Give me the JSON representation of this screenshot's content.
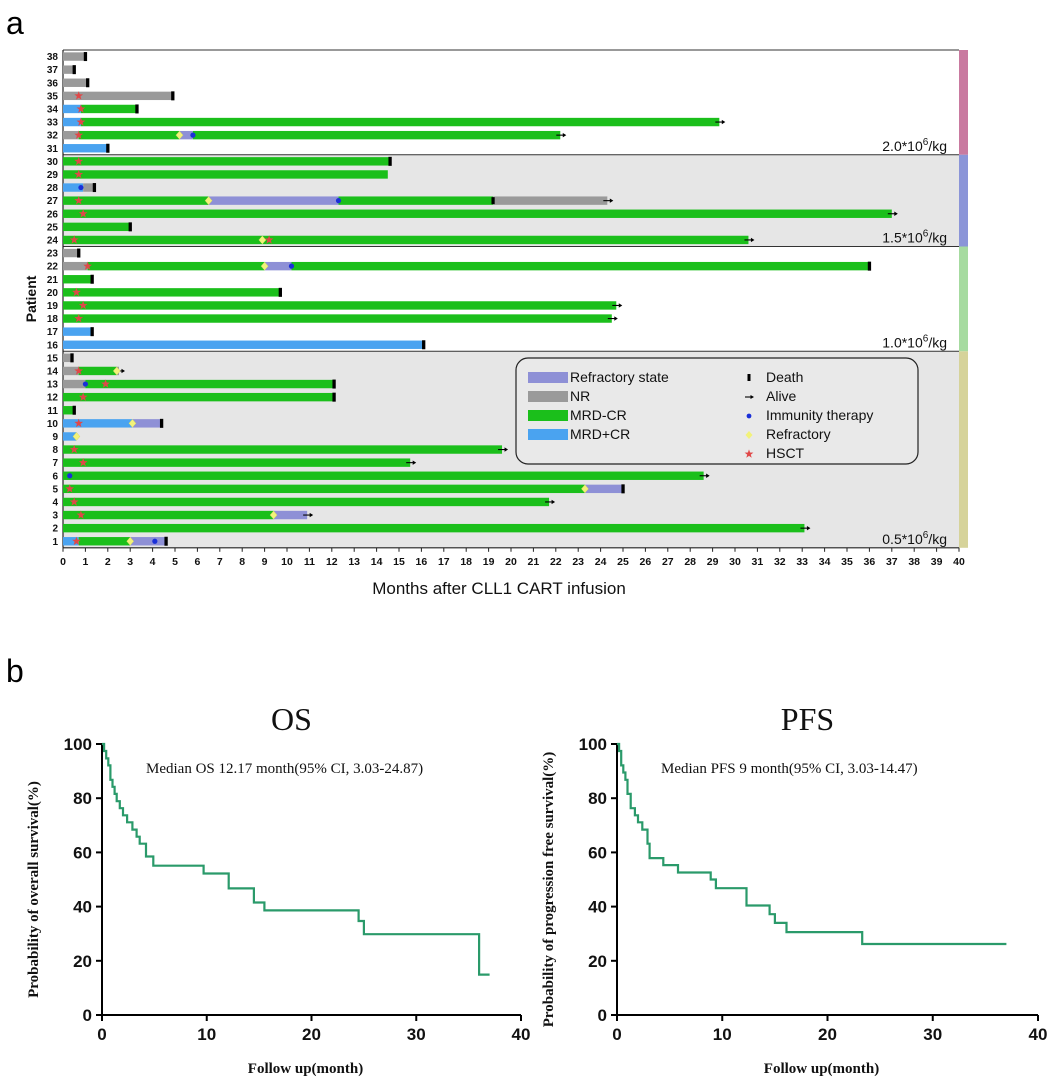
{
  "panel_labels": {
    "a": "a",
    "b": "b"
  },
  "colors": {
    "refractory_state": "#8e90d6",
    "nr": "#9a9a9a",
    "mrd_neg_cr": "#1bbf1b",
    "mrd_pos_cr": "#4aa3f0",
    "immunity": "#1a2fd8",
    "refractory": "#f2f27a",
    "hsct": "#e04848",
    "km_line": "#2a9a6a",
    "band_2_0": "#c97aa0",
    "band_1_5": "#8b95d8",
    "band_1_0": "#a6dba0",
    "band_0_5": "#d6d39a",
    "shade": "#e6e6e6"
  },
  "chart_data": [
    {
      "type": "swimmer",
      "ylabel": "Patient",
      "xlabel": "Months after CLL1 CART infusion",
      "xlim": [
        0,
        40
      ],
      "xticks": [
        0,
        1,
        2,
        3,
        4,
        5,
        6,
        7,
        8,
        9,
        10,
        11,
        12,
        13,
        14,
        15,
        16,
        17,
        18,
        19,
        20,
        21,
        22,
        23,
        24,
        25,
        26,
        27,
        28,
        29,
        30,
        31,
        32,
        33,
        34,
        35,
        36,
        37,
        38,
        39,
        40
      ],
      "legend": [
        {
          "key": "refractory_state",
          "label": "Refractory state",
          "kind": "bar"
        },
        {
          "key": "nr",
          "label": "NR",
          "kind": "bar"
        },
        {
          "key": "mrd_neg_cr",
          "label": "MRD-CR",
          "kind": "bar"
        },
        {
          "key": "mrd_pos_cr",
          "label": "MRD+CR",
          "kind": "bar"
        },
        {
          "key": "death",
          "label": "Death",
          "kind": "marker"
        },
        {
          "key": "alive",
          "label": "Alive",
          "kind": "marker"
        },
        {
          "key": "immunity",
          "label": "Immunity therapy",
          "kind": "marker"
        },
        {
          "key": "refractory",
          "label": "Refractory",
          "kind": "marker"
        },
        {
          "key": "hsct",
          "label": "HSCT",
          "kind": "marker"
        }
      ],
      "dose_groups": [
        {
          "label": "2.0*10",
          "sup": "6",
          "unit": "/kg",
          "from": 31,
          "to": 38,
          "color_key": "band_2_0",
          "shaded": false
        },
        {
          "label": "1.5*10",
          "sup": "6",
          "unit": "/kg",
          "from": 24,
          "to": 30,
          "color_key": "band_1_5",
          "shaded": true
        },
        {
          "label": "1.0*10",
          "sup": "6",
          "unit": "/kg",
          "from": 16,
          "to": 23,
          "color_key": "band_1_0",
          "shaded": false
        },
        {
          "label": "0.5*10",
          "sup": "6",
          "unit": "/kg",
          "from": 1,
          "to": 15,
          "color_key": "band_0_5",
          "shaded": true
        }
      ],
      "patients": [
        {
          "id": 38,
          "segments": [
            [
              "nr",
              0,
              1.0
            ]
          ],
          "end": "death",
          "events": []
        },
        {
          "id": 37,
          "segments": [
            [
              "nr",
              0,
              0.5
            ]
          ],
          "end": "death",
          "events": []
        },
        {
          "id": 36,
          "segments": [
            [
              "nr",
              0,
              1.1
            ]
          ],
          "end": "death",
          "events": []
        },
        {
          "id": 35,
          "segments": [
            [
              "nr",
              0,
              4.9
            ]
          ],
          "end": "death",
          "events": [
            [
              "hsct",
              0.7
            ]
          ]
        },
        {
          "id": 34,
          "segments": [
            [
              "mrd_pos_cr",
              0,
              0.8
            ],
            [
              "mrd_neg_cr",
              0.8,
              3.3
            ]
          ],
          "end": "death",
          "events": [
            [
              "hsct",
              0.8
            ]
          ]
        },
        {
          "id": 33,
          "segments": [
            [
              "mrd_pos_cr",
              0,
              0.8
            ],
            [
              "mrd_neg_cr",
              0.8,
              29.3
            ]
          ],
          "end": "alive",
          "events": [
            [
              "hsct",
              0.8
            ]
          ]
        },
        {
          "id": 32,
          "segments": [
            [
              "nr",
              0,
              0.7
            ],
            [
              "mrd_neg_cr",
              0.7,
              5.2
            ],
            [
              "refractory_state",
              5.2,
              5.8
            ],
            [
              "mrd_neg_cr",
              5.8,
              22.2
            ]
          ],
          "end": "alive",
          "events": [
            [
              "hsct",
              0.7
            ],
            [
              "refractory",
              5.2
            ],
            [
              "immunity",
              5.8
            ]
          ]
        },
        {
          "id": 31,
          "segments": [
            [
              "mrd_pos_cr",
              0,
              2.0
            ]
          ],
          "end": "death",
          "events": []
        },
        {
          "id": 30,
          "segments": [
            [
              "mrd_neg_cr",
              0,
              14.6
            ]
          ],
          "end": "death",
          "events": [
            [
              "hsct",
              0.7
            ]
          ]
        },
        {
          "id": 29,
          "segments": [
            [
              "mrd_neg_cr",
              0,
              14.5
            ]
          ],
          "end": "none",
          "events": [
            [
              "hsct",
              0.7
            ]
          ]
        },
        {
          "id": 28,
          "segments": [
            [
              "mrd_pos_cr",
              0,
              0.9
            ],
            [
              "nr",
              0.9,
              1.4
            ]
          ],
          "end": "death",
          "events": [
            [
              "immunity",
              0.8
            ]
          ]
        },
        {
          "id": 27,
          "segments": [
            [
              "mrd_neg_cr",
              0,
              6.5
            ],
            [
              "refractory_state",
              6.5,
              12.3
            ],
            [
              "mrd_neg_cr",
              12.3,
              19.2
            ],
            [
              "nr",
              19.2,
              24.3
            ]
          ],
          "end": "alive",
          "events": [
            [
              "hsct",
              0.7
            ],
            [
              "refractory",
              6.5
            ],
            [
              "immunity",
              12.3
            ],
            [
              "death_mark",
              19.2
            ]
          ]
        },
        {
          "id": 26,
          "segments": [
            [
              "mrd_neg_cr",
              0,
              37.0
            ]
          ],
          "end": "alive",
          "events": [
            [
              "hsct",
              0.9
            ]
          ]
        },
        {
          "id": 25,
          "segments": [
            [
              "mrd_neg_cr",
              0,
              3.0
            ]
          ],
          "end": "death",
          "events": []
        },
        {
          "id": 24,
          "segments": [
            [
              "mrd_neg_cr",
              0,
              30.6
            ]
          ],
          "end": "alive",
          "events": [
            [
              "hsct",
              0.5
            ],
            [
              "refractory",
              8.9
            ],
            [
              "hsct",
              9.2
            ]
          ]
        },
        {
          "id": 23,
          "segments": [
            [
              "nr",
              0,
              0.7
            ]
          ],
          "end": "death",
          "events": []
        },
        {
          "id": 22,
          "segments": [
            [
              "nr",
              0,
              1.1
            ],
            [
              "mrd_neg_cr",
              1.1,
              9.0
            ],
            [
              "refractory_state",
              9.0,
              10.2
            ],
            [
              "mrd_neg_cr",
              10.2,
              36.0
            ]
          ],
          "end": "death",
          "events": [
            [
              "hsct",
              1.1
            ],
            [
              "refractory",
              9.0
            ],
            [
              "immunity",
              10.2
            ]
          ]
        },
        {
          "id": 21,
          "segments": [
            [
              "mrd_neg_cr",
              0,
              1.3
            ]
          ],
          "end": "death",
          "events": []
        },
        {
          "id": 20,
          "segments": [
            [
              "mrd_neg_cr",
              0,
              9.7
            ]
          ],
          "end": "death",
          "events": [
            [
              "hsct",
              0.6
            ]
          ]
        },
        {
          "id": 19,
          "segments": [
            [
              "mrd_neg_cr",
              0,
              24.7
            ]
          ],
          "end": "alive",
          "events": [
            [
              "hsct",
              0.9
            ]
          ]
        },
        {
          "id": 18,
          "segments": [
            [
              "mrd_neg_cr",
              0,
              24.5
            ]
          ],
          "end": "alive",
          "events": [
            [
              "hsct",
              0.7
            ]
          ]
        },
        {
          "id": 17,
          "segments": [
            [
              "mrd_pos_cr",
              0,
              1.3
            ]
          ],
          "end": "death",
          "events": []
        },
        {
          "id": 16,
          "segments": [
            [
              "mrd_pos_cr",
              0,
              16.1
            ]
          ],
          "end": "death",
          "events": []
        },
        {
          "id": 15,
          "segments": [
            [
              "nr",
              0,
              0.4
            ]
          ],
          "end": "death",
          "events": []
        },
        {
          "id": 14,
          "segments": [
            [
              "nr",
              0,
              0.7
            ],
            [
              "mrd_neg_cr",
              0.7,
              2.4
            ],
            [
              "nr",
              2.4,
              2.5
            ]
          ],
          "end": "alive",
          "events": [
            [
              "hsct",
              0.7
            ],
            [
              "refractory",
              2.4
            ]
          ]
        },
        {
          "id": 13,
          "segments": [
            [
              "nr",
              0,
              1.0
            ],
            [
              "mrd_neg_cr",
              1.0,
              12.1
            ]
          ],
          "end": "death",
          "events": [
            [
              "immunity",
              1.0
            ],
            [
              "hsct",
              1.9
            ]
          ]
        },
        {
          "id": 12,
          "segments": [
            [
              "mrd_neg_cr",
              0,
              12.1
            ]
          ],
          "end": "death",
          "events": [
            [
              "hsct",
              0.9
            ]
          ]
        },
        {
          "id": 11,
          "segments": [
            [
              "mrd_neg_cr",
              0,
              0.5
            ]
          ],
          "end": "death",
          "events": []
        },
        {
          "id": 10,
          "segments": [
            [
              "mrd_pos_cr",
              0,
              3.1
            ],
            [
              "refractory_state",
              3.1,
              4.4
            ]
          ],
          "end": "death",
          "events": [
            [
              "hsct",
              0.7
            ],
            [
              "refractory",
              3.1
            ]
          ]
        },
        {
          "id": 9,
          "segments": [
            [
              "mrd_pos_cr",
              0,
              0.6
            ]
          ],
          "end": "none",
          "events": [
            [
              "refractory",
              0.6
            ]
          ]
        },
        {
          "id": 8,
          "segments": [
            [
              "mrd_neg_cr",
              0,
              19.6
            ]
          ],
          "end": "alive",
          "events": [
            [
              "hsct",
              0.5
            ]
          ]
        },
        {
          "id": 7,
          "segments": [
            [
              "mrd_neg_cr",
              0,
              15.5
            ]
          ],
          "end": "alive",
          "events": [
            [
              "hsct",
              0.9
            ]
          ]
        },
        {
          "id": 6,
          "segments": [
            [
              "mrd_neg_cr",
              0,
              28.6
            ]
          ],
          "end": "alive",
          "events": [
            [
              "immunity",
              0.3
            ]
          ]
        },
        {
          "id": 5,
          "segments": [
            [
              "mrd_neg_cr",
              0,
              23.3
            ],
            [
              "refractory_state",
              23.3,
              25.0
            ]
          ],
          "end": "death",
          "events": [
            [
              "hsct",
              0.3
            ],
            [
              "refractory",
              23.3
            ]
          ]
        },
        {
          "id": 4,
          "segments": [
            [
              "mrd_neg_cr",
              0,
              21.7
            ]
          ],
          "end": "alive",
          "events": [
            [
              "hsct",
              0.5
            ]
          ]
        },
        {
          "id": 3,
          "segments": [
            [
              "mrd_neg_cr",
              0,
              9.4
            ],
            [
              "refractory_state",
              9.4,
              10.9
            ]
          ],
          "end": "alive",
          "events": [
            [
              "hsct",
              0.8
            ],
            [
              "refractory",
              9.4
            ]
          ]
        },
        {
          "id": 2,
          "segments": [
            [
              "mrd_neg_cr",
              0,
              33.1
            ]
          ],
          "end": "alive",
          "events": []
        },
        {
          "id": 1,
          "segments": [
            [
              "mrd_pos_cr",
              0,
              0.7
            ],
            [
              "mrd_neg_cr",
              0.7,
              3.0
            ],
            [
              "refractory_state",
              3.0,
              4.6
            ]
          ],
          "end": "death",
          "events": [
            [
              "hsct",
              0.6
            ],
            [
              "refractory",
              3.0
            ],
            [
              "immunity",
              4.1
            ]
          ]
        }
      ]
    },
    {
      "type": "line",
      "step": true,
      "title": "OS",
      "xlabel": "Follow up(month)",
      "ylabel": "Probability of overall survival(%)",
      "annotation": "Median OS 12.17 month(95% CI, 3.03-24.87)",
      "xlim": [
        0,
        40
      ],
      "ylim": [
        0,
        100
      ],
      "xticks": [
        0,
        10,
        20,
        30,
        40
      ],
      "yticks": [
        0,
        20,
        40,
        60,
        80,
        100
      ],
      "x": [
        0,
        0.2,
        0.4,
        0.6,
        0.8,
        1.0,
        1.2,
        1.4,
        1.7,
        2.0,
        2.4,
        2.9,
        3.3,
        3.6,
        4.2,
        4.9,
        9.7,
        12.1,
        14.5,
        15.5,
        16.1,
        24.5,
        24.7,
        25.0,
        36.0,
        37.0
      ],
      "y": [
        100,
        97.4,
        94.7,
        92.1,
        86.8,
        84.2,
        81.6,
        78.9,
        76.3,
        73.7,
        71.1,
        68.4,
        65.8,
        63.2,
        58.5,
        55.1,
        52.2,
        46.7,
        41.5,
        38.6,
        38.6,
        34.7,
        34.7,
        29.8,
        14.9,
        14.9
      ]
    },
    {
      "type": "line",
      "step": true,
      "title": "PFS",
      "xlabel": "Follow up(month)",
      "ylabel": "Probability of  progression free survival(%)",
      "annotation": "Median PFS 9 month(95% CI, 3.03-14.47)",
      "xlim": [
        0,
        40
      ],
      "ylim": [
        0,
        100
      ],
      "xticks": [
        0,
        10,
        20,
        30,
        40
      ],
      "yticks": [
        0,
        20,
        40,
        60,
        80,
        100
      ],
      "x": [
        0,
        0.2,
        0.4,
        0.6,
        0.8,
        1.0,
        1.3,
        1.7,
        2.0,
        2.4,
        2.9,
        3.1,
        4.4,
        5.8,
        8.9,
        9.4,
        10.2,
        12.3,
        14.5,
        15.0,
        16.1,
        23.3,
        37.0
      ],
      "y": [
        100,
        97.4,
        92.1,
        89.5,
        86.8,
        81.6,
        76.3,
        73.7,
        71.1,
        68.4,
        63.2,
        57.9,
        55.3,
        52.6,
        50.0,
        46.8,
        46.8,
        40.4,
        37.2,
        34.0,
        30.6,
        26.2,
        26.2
      ]
    }
  ]
}
